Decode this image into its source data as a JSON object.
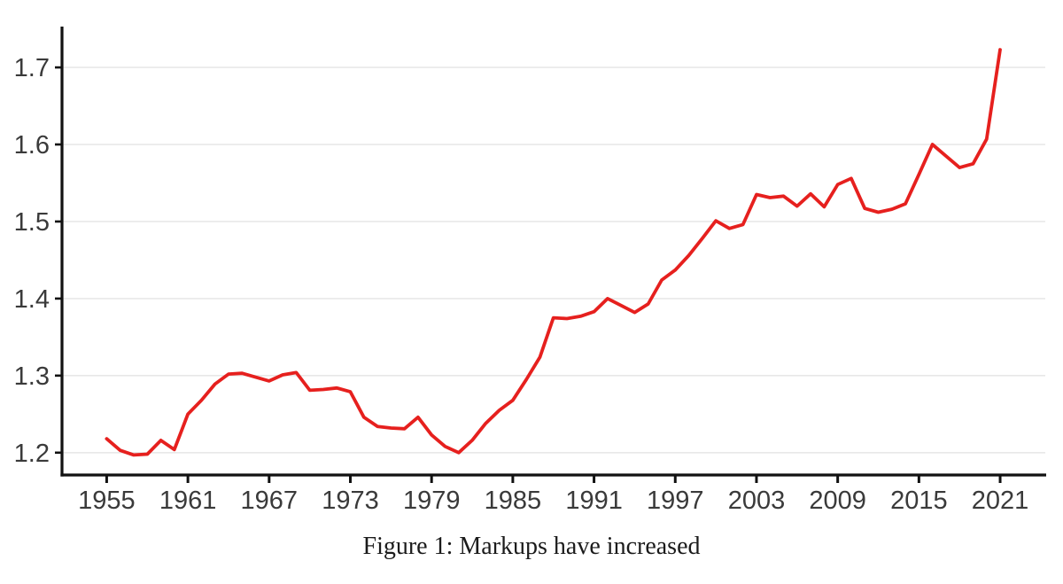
{
  "page": {
    "background": "#ffffff"
  },
  "caption": "Figure 1: Markups have increased",
  "chart_data": {
    "type": "line",
    "title": "Figure 1: Markups have increased",
    "xlabel": "",
    "ylabel": "",
    "legend": "none",
    "grid": "horizontal",
    "xlim": [
      1951.7,
      2024.4
    ],
    "ylim": [
      1.171,
      1.753
    ],
    "xticks": [
      1955,
      1961,
      1967,
      1973,
      1979,
      1985,
      1991,
      1997,
      2003,
      2009,
      2015,
      2021
    ],
    "yticks": [
      1.2,
      1.3,
      1.4,
      1.5,
      1.6,
      1.7
    ],
    "ytick_labels": [
      "1.2",
      "1.3",
      "1.4",
      "1.5",
      "1.6",
      "1.7"
    ],
    "x": [
      1955,
      1956,
      1957,
      1958,
      1959,
      1960,
      1961,
      1962,
      1963,
      1964,
      1965,
      1966,
      1967,
      1968,
      1969,
      1970,
      1971,
      1972,
      1973,
      1974,
      1975,
      1976,
      1977,
      1978,
      1979,
      1980,
      1981,
      1982,
      1983,
      1984,
      1985,
      1986,
      1987,
      1988,
      1989,
      1990,
      1991,
      1992,
      1993,
      1994,
      1995,
      1996,
      1997,
      1998,
      1999,
      2000,
      2001,
      2002,
      2003,
      2004,
      2005,
      2006,
      2007,
      2008,
      2009,
      2010,
      2011,
      2012,
      2013,
      2014,
      2015,
      2016,
      2017,
      2018,
      2019,
      2020,
      2021
    ],
    "series": [
      {
        "name": "markup",
        "color": "#e6201e",
        "values": [
          1.218,
          1.203,
          1.197,
          1.198,
          1.216,
          1.204,
          1.25,
          1.268,
          1.289,
          1.302,
          1.303,
          1.298,
          1.293,
          1.301,
          1.304,
          1.281,
          1.282,
          1.284,
          1.279,
          1.246,
          1.234,
          1.232,
          1.231,
          1.246,
          1.223,
          1.208,
          1.2,
          1.216,
          1.238,
          1.255,
          1.268,
          1.295,
          1.324,
          1.375,
          1.374,
          1.377,
          1.383,
          1.4,
          1.391,
          1.382,
          1.393,
          1.424,
          1.437,
          1.456,
          1.478,
          1.501,
          1.491,
          1.496,
          1.535,
          1.531,
          1.533,
          1.52,
          1.536,
          1.519,
          1.548,
          1.556,
          1.517,
          1.512,
          1.516,
          1.523,
          1.561,
          1.6,
          1.585,
          1.57,
          1.575,
          1.607,
          1.723
        ]
      }
    ],
    "colors": {
      "line": "#e6201e",
      "grid": "#e8e8e8",
      "axis": "#111111",
      "tick_label": "#3a3a3a",
      "caption_text": "#1b1b1b"
    }
  }
}
